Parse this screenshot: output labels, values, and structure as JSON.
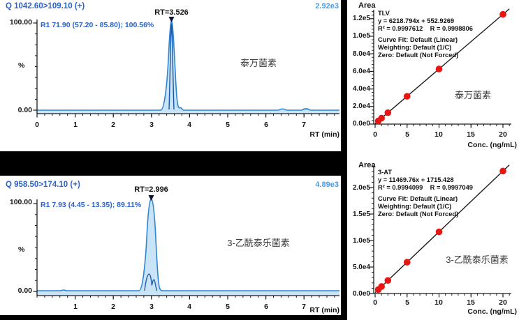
{
  "colors": {
    "background": "#000000",
    "trace_blue": "#2e86d3",
    "trace_fill": "#c9e3f7",
    "trace_dark": "#1a57a8",
    "header_blue": "#2b63cc",
    "intensity_blue": "#3f9ef5",
    "point_red": "#e81613",
    "axis_black": "#1c1c1c"
  },
  "panels": {
    "chrom1": {
      "transition": "Q 1042.60>109.10 (+)",
      "intensity": "2.92e3",
      "rt_label": "RT=3.526",
      "ion_ratio": "R1 71.90 (57.20 - 85.80); 100.56%",
      "compound": "泰万菌素",
      "y_axis": {
        "max": "100.00",
        "min": "0.00",
        "unit": "%"
      },
      "x_ticks": [
        "0",
        "1",
        "2",
        "3",
        "4",
        "5",
        "6",
        "7"
      ],
      "x_label": "RT (min)"
    },
    "chrom2": {
      "transition": "Q 958.50>174.10 (+)",
      "intensity": "4.89e3",
      "rt_label": "RT=2.996",
      "ion_ratio": "R1 7.93 (4.45 - 13.35); 89.11%",
      "compound": "3-乙酰泰乐菌素",
      "y_axis": {
        "max": "100.00",
        "min": "0.00",
        "unit": "%"
      },
      "x_ticks": [
        "1",
        "2",
        "3",
        "4",
        "5",
        "6",
        "7"
      ],
      "x_label": "RT (min)"
    },
    "cal1": {
      "y_title": "Area",
      "analyte": "TLV",
      "equation": "y = 6218.794x + 552.9269",
      "r_line": "R² = 0.9997612    R = 0.9998806",
      "fit": "Curve Fit: Default (Linear)",
      "weighting": "Weighting: Default (1/C)",
      "zero": "Zero: Default (Not Forced)",
      "compound": "泰万菌素",
      "y_ticks": [
        "1.2e5",
        "1.0e5",
        "8.0e4",
        "6.0e4",
        "4.0e4",
        "2.0e4",
        "0.0e0"
      ],
      "x_ticks": [
        "0",
        "5",
        "10",
        "15",
        "20"
      ],
      "x_label": "Conc. (ng/mL)"
    },
    "cal2": {
      "y_title": "Area",
      "analyte": "3-AT",
      "equation": "y = 11469.76x + 1715.428",
      "r_line": "R² = 0.9994099    R = 0.9997049",
      "fit": "Curve Fit: Default (Linear)",
      "weighting": "Weighting: Default (1/C)",
      "zero": "Zero: Default (Not Forced)",
      "compound": "3-乙酰泰乐菌素",
      "y_ticks": [
        "2.0e5",
        "1.5e5",
        "1.0e5",
        "5.0e4",
        "0.0e0"
      ],
      "x_ticks": [
        "0",
        "5",
        "10",
        "15",
        "20"
      ],
      "x_label": "Conc. (ng/mL)"
    }
  },
  "chart_data": [
    {
      "type": "line",
      "title": "泰万菌素 chromatogram",
      "transition": "Q 1042.60>109.10 (+)",
      "max_intensity_label": "2.92e3",
      "peak_rt_min": 3.526,
      "peak_height_pct": 100,
      "ion_ratio": "R1 71.90 (57.20 - 85.80); 100.56%",
      "xlabel": "RT (min)",
      "ylabel": "%",
      "xlim": [
        0,
        7.9
      ],
      "ylim": [
        0,
        100
      ]
    },
    {
      "type": "line",
      "title": "3-乙酰泰乐菌素 chromatogram",
      "transition": "Q 958.50>174.10 (+)",
      "max_intensity_label": "4.89e3",
      "peak_rt_min": 2.996,
      "peak_height_pct": 100,
      "ion_ratio": "R1 7.93 (4.45 - 13.35); 89.11%",
      "xlabel": "RT (min)",
      "ylabel": "%",
      "xlim": [
        0,
        7.9
      ],
      "ylim": [
        0,
        100
      ]
    },
    {
      "type": "scatter",
      "title": "TLV calibration",
      "slope": 6218.794,
      "intercept": 552.9269,
      "r2": 0.9997612,
      "r": 0.9998806,
      "points": [
        {
          "conc": 0.5,
          "area": 3662
        },
        {
          "conc": 1,
          "area": 6772
        },
        {
          "conc": 2,
          "area": 12990
        },
        {
          "conc": 5,
          "area": 31647
        },
        {
          "conc": 10,
          "area": 62741
        },
        {
          "conc": 20,
          "area": 124929
        }
      ],
      "xlabel": "Conc. (ng/mL)",
      "ylabel": "Area",
      "xlim": [
        0,
        21
      ],
      "ylim": [
        0,
        130000
      ]
    },
    {
      "type": "scatter",
      "title": "3-AT calibration",
      "slope": 11469.76,
      "intercept": 1715.428,
      "r2": 0.9994099,
      "r": 0.9997049,
      "points": [
        {
          "conc": 0.5,
          "area": 7450
        },
        {
          "conc": 1,
          "area": 13185
        },
        {
          "conc": 2,
          "area": 24655
        },
        {
          "conc": 5,
          "area": 59064
        },
        {
          "conc": 10,
          "area": 116413
        },
        {
          "conc": 20,
          "area": 231111
        }
      ],
      "xlabel": "Conc. (ng/mL)",
      "ylabel": "Area",
      "xlim": [
        0,
        21
      ],
      "ylim": [
        0,
        250000
      ]
    }
  ]
}
